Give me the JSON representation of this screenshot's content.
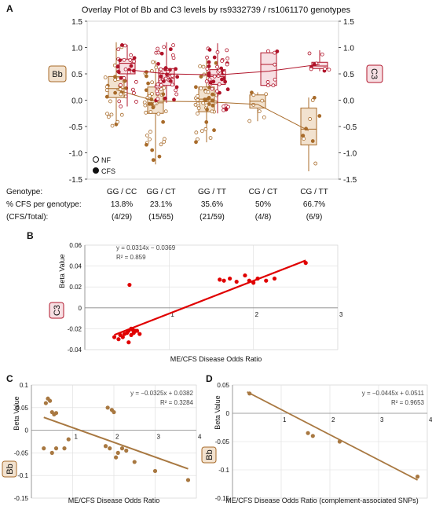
{
  "panels": {
    "a": "A",
    "b": "B",
    "c": "C",
    "d": "D"
  },
  "colors": {
    "bb": "#a86b2a",
    "bb_fill": "#f2e2cf",
    "c3": "#b0142a",
    "c3_fill": "#f7dfe3",
    "red": "#e00000",
    "brown": "#a87841",
    "grid": "#dddddd"
  },
  "panel_a": {
    "title": "Overlay Plot of Bb and C3 levels by rs9332739 / rs1061170 genotypes",
    "left_tag": "Bb",
    "right_tag": "C3",
    "legend": {
      "nf": "NF",
      "cfs": "CFS"
    },
    "row_labels": [
      "Genotype:",
      "% CFS per genotype:",
      "(CFS/Total):"
    ],
    "table": [
      {
        "genotype": "GG / CC",
        "pct": "13.8%",
        "ratio": "(4/29)"
      },
      {
        "genotype": "GG / CT",
        "pct": "23.1%",
        "ratio": "(15/65)"
      },
      {
        "genotype": "GG / TT",
        "pct": "35.6%",
        "ratio": "(21/59)"
      },
      {
        "genotype": "CG / CT",
        "pct": "50%",
        "ratio": "(4/8)"
      },
      {
        "genotype": "CG / TT",
        "pct": "66.7%",
        "ratio": "(6/9)"
      }
    ]
  },
  "chart_data": [
    {
      "type": "box",
      "title": "Overlay Plot of Bb and C3 levels by rs9332739 / rs1061170 genotypes",
      "categories": [
        "GG / CC",
        "GG / CT",
        "GG / TT",
        "CG / CT",
        "CG / TT"
      ],
      "ylim": [
        -1.5,
        1.5
      ],
      "yticks": [
        -1.5,
        -1.0,
        -0.5,
        0.0,
        0.5,
        1.0,
        1.5
      ],
      "y2ticks": [
        -1.5,
        -1.0,
        -0.5,
        0.0,
        0.5,
        1.0,
        1.5
      ],
      "series": [
        {
          "name": "Bb",
          "boxes": [
            {
              "q1": 0.05,
              "median": 0.22,
              "q3": 0.45,
              "low": -0.5,
              "high": 1.1,
              "n": 29
            },
            {
              "q1": -0.25,
              "median": -0.05,
              "q3": 0.25,
              "low": -1.22,
              "high": 0.75,
              "n": 65
            },
            {
              "q1": -0.22,
              "median": 0.02,
              "q3": 0.25,
              "low": -0.8,
              "high": 0.82,
              "n": 59
            },
            {
              "q1": -0.15,
              "median": -0.02,
              "q3": 0.1,
              "low": -0.4,
              "high": 0.15,
              "n": 8
            },
            {
              "q1": -0.85,
              "median": -0.55,
              "q3": -0.15,
              "low": -1.35,
              "high": 0.05,
              "n": 9
            }
          ],
          "mean_line": [
            0.2,
            -0.02,
            -0.03,
            -0.08,
            -0.58
          ]
        },
        {
          "name": "C3",
          "boxes": [
            {
              "q1": 0.5,
              "median": 0.7,
              "q3": 0.78,
              "low": -0.12,
              "high": 1.05,
              "n": 29
            },
            {
              "q1": 0.28,
              "median": 0.42,
              "q3": 0.6,
              "low": -0.05,
              "high": 1.1,
              "n": 65
            },
            {
              "q1": 0.3,
              "median": 0.45,
              "q3": 0.58,
              "low": -0.25,
              "high": 1.08,
              "n": 59
            },
            {
              "q1": 0.28,
              "median": 0.68,
              "q3": 0.9,
              "low": 0.28,
              "high": 0.95,
              "n": 8
            },
            {
              "q1": 0.6,
              "median": 0.65,
              "q3": 0.72,
              "low": 0.55,
              "high": 0.95,
              "n": 9
            }
          ],
          "mean_line": [
            0.58,
            0.5,
            0.48,
            0.55,
            0.68
          ]
        }
      ]
    },
    {
      "type": "scatter",
      "xlabel": "ME/CFS Disease Odds Ratio",
      "ylabel": "Beta Value",
      "tag": "C3",
      "xlim": [
        0,
        3
      ],
      "ylim": [
        -0.04,
        0.06
      ],
      "xticks": [
        1,
        2,
        3
      ],
      "yticks": [
        -0.04,
        -0.02,
        0,
        0.02,
        0.04,
        0.06
      ],
      "equation": "y = 0.0314x − 0.0369",
      "r2": "R² = 0.859",
      "fit": {
        "slope": 0.0314,
        "intercept": -0.0369,
        "x0": 0.35,
        "x1": 2.62
      },
      "points": [
        [
          0.35,
          -0.028
        ],
        [
          0.4,
          -0.03
        ],
        [
          0.42,
          -0.026
        ],
        [
          0.45,
          -0.028
        ],
        [
          0.47,
          -0.025
        ],
        [
          0.5,
          -0.024
        ],
        [
          0.52,
          -0.022
        ],
        [
          0.52,
          -0.033
        ],
        [
          0.55,
          -0.02
        ],
        [
          0.55,
          -0.026
        ],
        [
          0.57,
          -0.021
        ],
        [
          0.58,
          -0.024
        ],
        [
          0.6,
          -0.022
        ],
        [
          0.62,
          -0.022
        ],
        [
          0.65,
          -0.025
        ],
        [
          0.53,
          0.022
        ],
        [
          1.6,
          0.027
        ],
        [
          1.65,
          0.026
        ],
        [
          1.72,
          0.028
        ],
        [
          1.8,
          0.025
        ],
        [
          1.9,
          0.031
        ],
        [
          1.95,
          0.026
        ],
        [
          2.0,
          0.024
        ],
        [
          2.05,
          0.028
        ],
        [
          2.15,
          0.026
        ],
        [
          2.25,
          0.028
        ],
        [
          2.62,
          0.043
        ]
      ]
    },
    {
      "type": "scatter",
      "xlabel": "ME/CFS Disease Odds Ratio",
      "ylabel": "Beta Value",
      "tag": "Bb",
      "xlim": [
        0,
        4
      ],
      "ylim": [
        -0.15,
        0.1
      ],
      "xticks": [
        1,
        2,
        3,
        4
      ],
      "yticks": [
        -0.15,
        -0.1,
        -0.05,
        0,
        0.05,
        0.1
      ],
      "equation": "y = −0.0325x + 0.0382",
      "r2": "R² = 0.3284",
      "fit": {
        "slope": -0.0325,
        "intercept": 0.0382,
        "x0": 0.3,
        "x1": 3.8
      },
      "points": [
        [
          0.35,
          0.06
        ],
        [
          0.4,
          0.07
        ],
        [
          0.45,
          0.065
        ],
        [
          0.5,
          0.04
        ],
        [
          0.55,
          0.035
        ],
        [
          0.6,
          0.038
        ],
        [
          0.3,
          -0.04
        ],
        [
          0.5,
          -0.05
        ],
        [
          0.6,
          -0.04
        ],
        [
          0.8,
          -0.04
        ],
        [
          0.9,
          -0.02
        ],
        [
          1.85,
          0.05
        ],
        [
          1.95,
          0.045
        ],
        [
          2.0,
          0.04
        ],
        [
          1.8,
          -0.035
        ],
        [
          1.9,
          -0.04
        ],
        [
          2.05,
          -0.06
        ],
        [
          2.1,
          -0.05
        ],
        [
          2.2,
          -0.04
        ],
        [
          2.3,
          -0.045
        ],
        [
          2.5,
          -0.07
        ],
        [
          3.0,
          -0.09
        ],
        [
          3.8,
          -0.11
        ]
      ]
    },
    {
      "type": "scatter",
      "xlabel": "ME/CFS Disease Odds Ratio (complement-associated SNPs)",
      "ylabel": "Beta Value",
      "tag": "Bb",
      "xlim": [
        0,
        4
      ],
      "ylim": [
        -0.15,
        0.05
      ],
      "xticks": [
        1,
        2,
        3,
        4
      ],
      "yticks": [
        -0.15,
        -0.1,
        -0.05,
        0,
        0.05
      ],
      "equation": "y = −0.0445x + 0.0511",
      "r2": "R² = 0.9653",
      "fit": {
        "slope": -0.0445,
        "intercept": 0.0511,
        "x0": 0.3,
        "x1": 3.8
      },
      "points": [
        [
          0.35,
          0.035
        ],
        [
          1.55,
          -0.035
        ],
        [
          1.65,
          -0.04
        ],
        [
          2.2,
          -0.05
        ],
        [
          3.8,
          -0.112
        ]
      ]
    }
  ]
}
